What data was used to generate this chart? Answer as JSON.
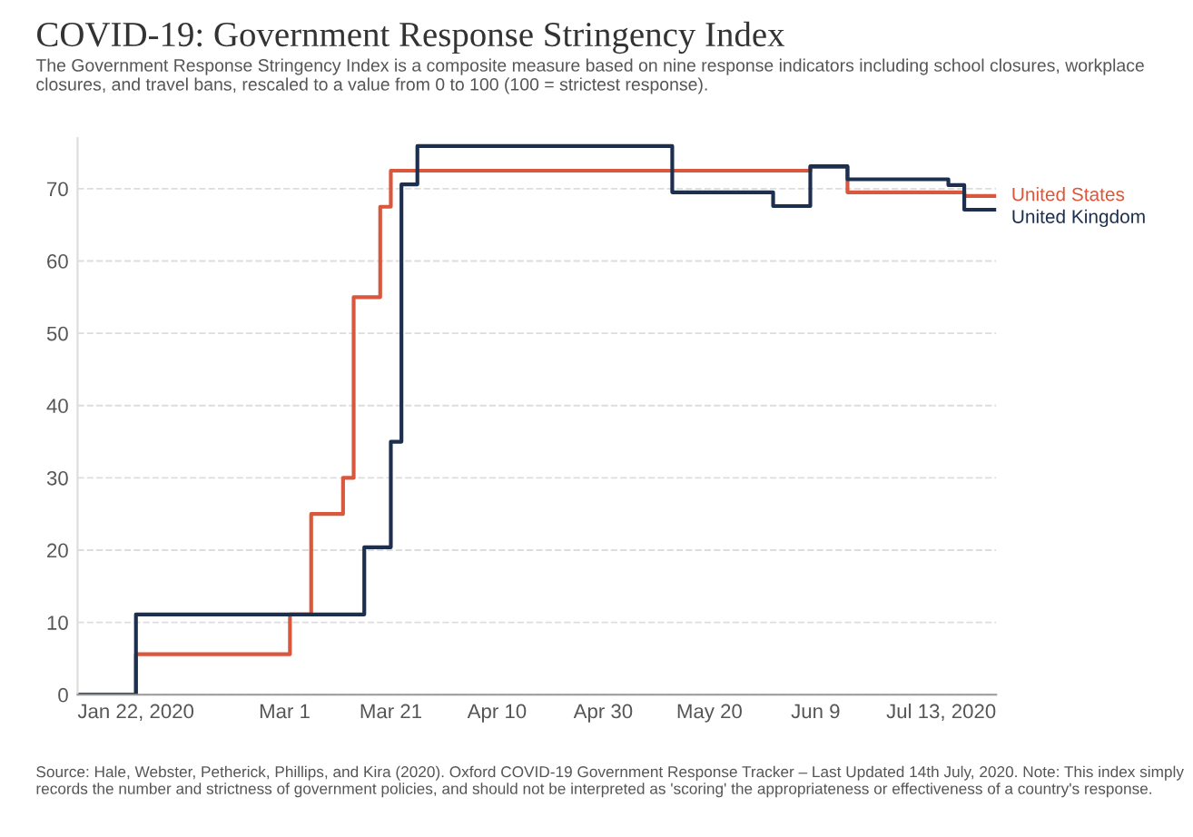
{
  "chart_data": {
    "type": "step",
    "title": "COVID-19: Government Response Stringency Index",
    "subtitle": "The Government Response Stringency Index is a composite measure based on nine response indicators including school closures, workplace closures, and travel bans, rescaled to a value from 0 to 100 (100 = strictest response).",
    "annotations": [
      "Source: Hale, Webster, Petherick, Phillips, and Kira (2020). Oxford COVID-19 Government Response Tracker – Last Updated 14th July, 2020. Note: This index simply records the number and strictness of government policies, and should not be interpreted as 'scoring' the appropriateness or effectiveness of a country's response."
    ],
    "series": [
      {
        "name": "United States",
        "color": "#d9573c",
        "x": [
          "2020-01-22",
          "2020-02-02",
          "2020-03-02",
          "2020-03-06",
          "2020-03-12",
          "2020-03-14",
          "2020-03-19",
          "2020-03-21",
          "2020-06-08",
          "2020-06-15",
          "2020-07-07",
          "2020-07-13"
        ],
        "values": [
          0,
          5.6,
          11.1,
          25,
          30,
          55,
          67.5,
          72.5,
          73,
          69.5,
          69,
          69
        ]
      },
      {
        "name": "United Kingdom",
        "color": "#1d2f4f",
        "x": [
          "2020-01-22",
          "2020-02-02",
          "2020-03-16",
          "2020-03-21",
          "2020-03-23",
          "2020-03-26",
          "2020-05-13",
          "2020-06-01",
          "2020-06-08",
          "2020-06-15",
          "2020-07-04",
          "2020-07-07",
          "2020-07-13"
        ],
        "values": [
          0,
          11.1,
          20.4,
          35,
          70.6,
          75.9,
          69.5,
          67.6,
          73.1,
          71.3,
          70.5,
          67.1,
          67.1
        ]
      }
    ],
    "xlim": [
      "2020-01-22",
      "2020-07-13"
    ],
    "xticks": [
      {
        "value": "2020-01-22",
        "label": "Jan 22, 2020"
      },
      {
        "value": "2020-03-01",
        "label": "Mar 1"
      },
      {
        "value": "2020-03-21",
        "label": "Mar 21"
      },
      {
        "value": "2020-04-10",
        "label": "Apr 10"
      },
      {
        "value": "2020-04-30",
        "label": "Apr 30"
      },
      {
        "value": "2020-05-20",
        "label": "May 20"
      },
      {
        "value": "2020-06-09",
        "label": "Jun 9"
      },
      {
        "value": "2020-07-13",
        "label": "Jul 13, 2020"
      }
    ],
    "ylim": [
      0,
      77
    ],
    "yticks": [
      0,
      10,
      20,
      30,
      40,
      50,
      60,
      70
    ],
    "grid": "y",
    "legend": false,
    "line_style": "solid"
  }
}
